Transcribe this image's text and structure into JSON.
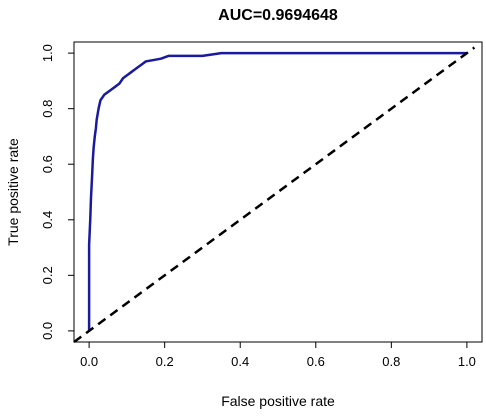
{
  "chart_data": {
    "type": "line",
    "title": "AUC=0.9694648",
    "xlabel": "False positive rate",
    "ylabel": "True positive rate",
    "xlim": [
      -0.04,
      1.04
    ],
    "ylim": [
      -0.04,
      1.04
    ],
    "x_ticks": [
      0.0,
      0.2,
      0.4,
      0.6,
      0.8,
      1.0
    ],
    "x_tick_labels": [
      "0.0",
      "0.2",
      "0.4",
      "0.6",
      "0.8",
      "1.0"
    ],
    "y_ticks": [
      0.0,
      0.2,
      0.4,
      0.6,
      0.8,
      1.0
    ],
    "y_tick_labels": [
      "0.0",
      "0.2",
      "0.4",
      "0.6",
      "0.8",
      "1.0"
    ],
    "grid": false,
    "series": [
      {
        "role": "roc-curve",
        "color": "#1a1aa0",
        "style": "solid",
        "x": [
          0.0,
          0.0,
          0.003,
          0.005,
          0.008,
          0.01,
          0.012,
          0.015,
          0.018,
          0.02,
          0.025,
          0.03,
          0.035,
          0.04,
          0.05,
          0.06,
          0.07,
          0.08,
          0.09,
          0.1,
          0.11,
          0.12,
          0.13,
          0.14,
          0.15,
          0.17,
          0.19,
          0.21,
          0.23,
          0.26,
          0.3,
          0.35,
          0.4,
          0.5,
          0.6,
          0.7,
          0.8,
          0.9,
          1.0
        ],
        "y": [
          0.0,
          0.31,
          0.4,
          0.48,
          0.56,
          0.62,
          0.66,
          0.7,
          0.73,
          0.76,
          0.8,
          0.83,
          0.84,
          0.85,
          0.86,
          0.87,
          0.88,
          0.89,
          0.91,
          0.92,
          0.93,
          0.94,
          0.95,
          0.96,
          0.97,
          0.975,
          0.98,
          0.99,
          0.99,
          0.99,
          0.99,
          1.0,
          1.0,
          1.0,
          1.0,
          1.0,
          1.0,
          1.0,
          1.0
        ]
      },
      {
        "role": "reference-diagonal",
        "color": "#000000",
        "style": "dashed",
        "x": [
          -0.04,
          1.02
        ],
        "y": [
          -0.04,
          1.02
        ]
      }
    ]
  }
}
